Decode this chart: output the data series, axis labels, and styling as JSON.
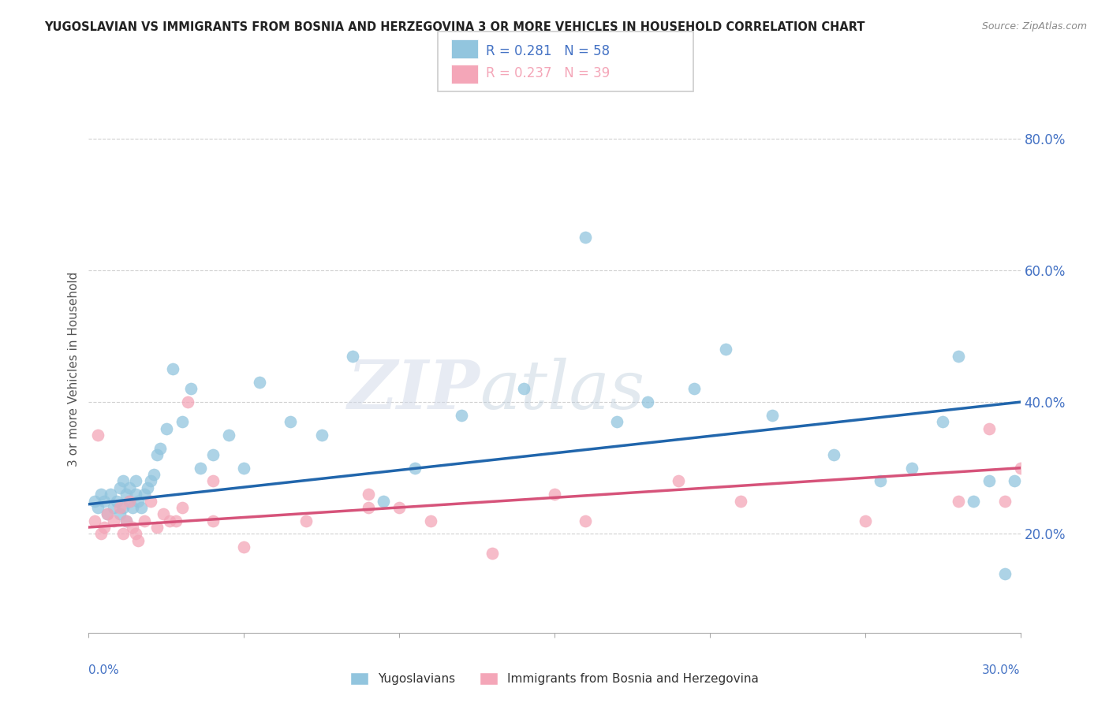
{
  "title": "YUGOSLAVIAN VS IMMIGRANTS FROM BOSNIA AND HERZEGOVINA 3 OR MORE VEHICLES IN HOUSEHOLD CORRELATION CHART",
  "source": "Source: ZipAtlas.com",
  "ylabel": "3 or more Vehicles in Household",
  "xlim": [
    0.0,
    30.0
  ],
  "ylim": [
    5.0,
    85.0
  ],
  "yticks": [
    20.0,
    40.0,
    60.0,
    80.0
  ],
  "xticks": [
    0.0,
    5.0,
    10.0,
    15.0,
    20.0,
    25.0,
    30.0
  ],
  "blue_color": "#92c5de",
  "pink_color": "#f4a6b8",
  "blue_line_color": "#2166ac",
  "pink_line_color": "#d6537a",
  "axis_label_color": "#4472c4",
  "legend_R_blue": "R = 0.281",
  "legend_N_blue": "N = 58",
  "legend_R_pink": "R = 0.237",
  "legend_N_pink": "N = 39",
  "blue_scatter_x": [
    0.2,
    0.3,
    0.4,
    0.5,
    0.6,
    0.7,
    0.8,
    0.9,
    1.0,
    1.0,
    1.1,
    1.1,
    1.2,
    1.2,
    1.3,
    1.3,
    1.4,
    1.5,
    1.5,
    1.6,
    1.7,
    1.8,
    1.9,
    2.0,
    2.1,
    2.2,
    2.3,
    2.5,
    2.7,
    3.0,
    3.3,
    3.6,
    4.0,
    4.5,
    5.0,
    5.5,
    6.5,
    7.5,
    8.5,
    9.5,
    10.5,
    12.0,
    14.0,
    16.0,
    17.0,
    18.0,
    19.5,
    20.5,
    22.0,
    24.0,
    25.5,
    26.5,
    27.5,
    28.0,
    28.5,
    29.0,
    29.5,
    29.8
  ],
  "blue_scatter_y": [
    25,
    24,
    26,
    25,
    23,
    26,
    24,
    25,
    27,
    23,
    28,
    24,
    26,
    22,
    27,
    25,
    24,
    28,
    26,
    25,
    24,
    26,
    27,
    28,
    29,
    32,
    33,
    36,
    45,
    37,
    42,
    30,
    32,
    35,
    30,
    43,
    37,
    35,
    47,
    25,
    30,
    38,
    42,
    65,
    37,
    40,
    42,
    48,
    38,
    32,
    28,
    30,
    37,
    47,
    25,
    28,
    14,
    28
  ],
  "pink_scatter_x": [
    0.2,
    0.3,
    0.4,
    0.5,
    0.6,
    0.8,
    1.0,
    1.1,
    1.2,
    1.3,
    1.4,
    1.5,
    1.6,
    1.8,
    2.0,
    2.2,
    2.4,
    2.6,
    2.8,
    3.0,
    3.2,
    4.0,
    5.0,
    7.0,
    9.0,
    10.0,
    11.0,
    13.0,
    15.0,
    16.0,
    19.0,
    21.0,
    25.0,
    28.0,
    29.0,
    29.5,
    30.0,
    9.0,
    4.0
  ],
  "pink_scatter_y": [
    22,
    35,
    20,
    21,
    23,
    22,
    24,
    20,
    22,
    25,
    21,
    20,
    19,
    22,
    25,
    21,
    23,
    22,
    22,
    24,
    40,
    22,
    18,
    22,
    24,
    24,
    22,
    17,
    26,
    22,
    28,
    25,
    22,
    25,
    36,
    25,
    30,
    26,
    28
  ],
  "blue_trend_x": [
    0.0,
    30.0
  ],
  "blue_trend_y": [
    24.5,
    40.0
  ],
  "pink_trend_x": [
    0.0,
    30.0
  ],
  "pink_trend_y": [
    21.0,
    30.0
  ],
  "watermark_zip": "ZIP",
  "watermark_atlas": "atlas",
  "background_color": "#ffffff",
  "grid_color": "#d0d0d0",
  "bottom_legend_labels": [
    "Yugoslavians",
    "Immigrants from Bosnia and Herzegovina"
  ]
}
